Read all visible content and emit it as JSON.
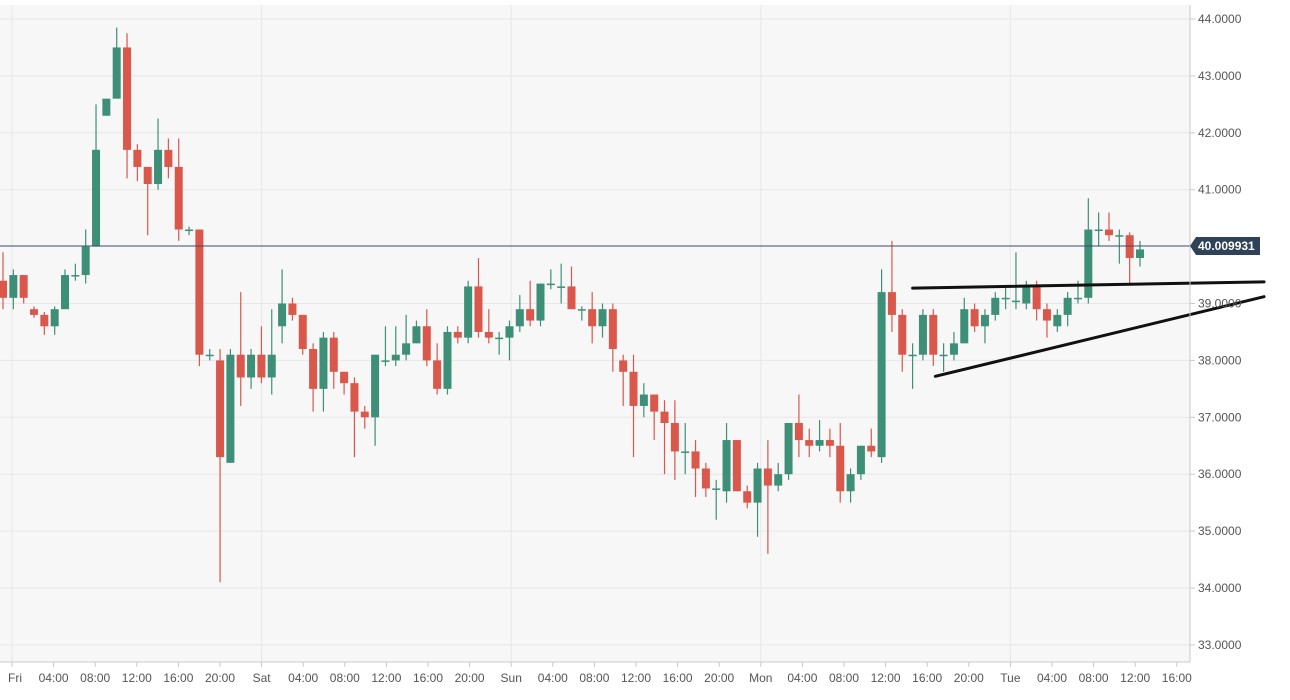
{
  "chart_data": {
    "type": "candlestick",
    "ylim": [
      32.7,
      44.2
    ],
    "y_ticks": [
      "44.0000",
      "43.0000",
      "42.0000",
      "41.0000",
      "39.0000",
      "38.0000",
      "37.0000",
      "36.0000",
      "35.0000",
      "34.0000",
      "33.0000"
    ],
    "y_tick_values": [
      44,
      43,
      42,
      41,
      39,
      38,
      37,
      36,
      35,
      34,
      33
    ],
    "x_ticks": [
      "Fri",
      "04:00",
      "08:00",
      "12:00",
      "16:00",
      "20:00",
      "Sat",
      "04:00",
      "08:00",
      "12:00",
      "16:00",
      "20:00",
      "Sun",
      "04:00",
      "08:00",
      "12:00",
      "16:00",
      "20:00",
      "Mon",
      "04:00",
      "08:00",
      "12:00",
      "16:00",
      "20:00",
      "Tue",
      "04:00",
      "08:00",
      "12:00",
      "16:00"
    ],
    "current_price": 40.009931,
    "current_price_label": "40.009931",
    "grid": true,
    "colors": {
      "up": "#3d8f77",
      "down": "#d9574b",
      "price_line": "#3b4a6b",
      "price_badge": "#2f4257",
      "grid": "#e7e7e7",
      "background": "#f7f7f7",
      "trendline": "#111111"
    },
    "trendlines": [
      {
        "name": "resistance",
        "points": [
          [
            8.8,
            39.27
          ],
          [
            12.2,
            39.38
          ]
        ]
      },
      {
        "name": "support",
        "points": [
          [
            9.02,
            37.72
          ],
          [
            12.2,
            39.12
          ]
        ]
      }
    ],
    "candles": [
      [
        0,
        39.4,
        39.1
      ],
      [
        0.1,
        39.1,
        39.5
      ],
      [
        0.2,
        39.5,
        39.1
      ],
      [
        0.3,
        38.9,
        38.8
      ],
      [
        0.4,
        38.8,
        38.6
      ],
      [
        0.5,
        38.6,
        38.9
      ],
      [
        0.6,
        38.9,
        39.5
      ],
      [
        0.7,
        39.5,
        39.5
      ],
      [
        0.8,
        39.5,
        40.0
      ],
      [
        0.9,
        40.0,
        41.7
      ],
      [
        1.0,
        42.3,
        42.6
      ],
      [
        1.1,
        42.6,
        43.5
      ],
      [
        1.2,
        43.5,
        41.7
      ],
      [
        1.3,
        41.7,
        41.4
      ],
      [
        1.4,
        41.4,
        41.1
      ],
      [
        1.5,
        41.1,
        41.7
      ],
      [
        1.6,
        41.7,
        41.4
      ],
      [
        1.7,
        41.4,
        40.3
      ],
      [
        1.8,
        40.3,
        40.3
      ],
      [
        1.9,
        40.3,
        38.1
      ],
      [
        2.0,
        38.1,
        38.1
      ],
      [
        2.1,
        38.0,
        36.3
      ],
      [
        2.2,
        36.2,
        38.1
      ],
      [
        2.3,
        38.1,
        37.7
      ],
      [
        2.4,
        37.7,
        38.1
      ],
      [
        2.5,
        38.1,
        37.7
      ],
      [
        2.6,
        37.7,
        38.1
      ],
      [
        2.7,
        38.6,
        39.0
      ],
      [
        2.8,
        39.0,
        38.8
      ],
      [
        2.9,
        38.8,
        38.2
      ],
      [
        3.0,
        38.2,
        37.5
      ],
      [
        3.1,
        37.5,
        38.4
      ],
      [
        3.2,
        38.4,
        37.8
      ],
      [
        3.3,
        37.8,
        37.6
      ],
      [
        3.4,
        37.6,
        37.1
      ],
      [
        3.5,
        37.1,
        37.0
      ],
      [
        3.6,
        37.0,
        38.1
      ],
      [
        3.7,
        38.0,
        38.0
      ],
      [
        3.8,
        38.0,
        38.1
      ],
      [
        3.9,
        38.1,
        38.3
      ],
      [
        4.0,
        38.3,
        38.6
      ],
      [
        4.1,
        38.6,
        38.0
      ],
      [
        4.2,
        38.0,
        37.5
      ],
      [
        4.3,
        37.5,
        38.5
      ],
      [
        4.4,
        38.5,
        38.4
      ],
      [
        4.5,
        38.4,
        39.3
      ],
      [
        4.6,
        39.3,
        38.5
      ],
      [
        4.7,
        38.5,
        38.4
      ],
      [
        4.8,
        38.4,
        38.4
      ],
      [
        4.9,
        38.4,
        38.6
      ],
      [
        5.0,
        38.6,
        38.9
      ],
      [
        5.1,
        38.9,
        38.7
      ],
      [
        5.2,
        38.7,
        39.35
      ],
      [
        5.3,
        39.35,
        39.35
      ],
      [
        5.4,
        39.3,
        39.3
      ],
      [
        5.5,
        39.3,
        38.9
      ],
      [
        5.6,
        38.9,
        38.9
      ],
      [
        5.7,
        38.9,
        38.6
      ],
      [
        5.8,
        38.6,
        38.9
      ],
      [
        5.9,
        38.9,
        38.2
      ],
      [
        6.0,
        38.0,
        37.8
      ],
      [
        6.1,
        37.8,
        37.2
      ],
      [
        6.2,
        37.2,
        37.4
      ],
      [
        6.3,
        37.4,
        37.1
      ],
      [
        6.4,
        37.1,
        36.9
      ],
      [
        6.5,
        36.9,
        36.4
      ],
      [
        6.6,
        36.4,
        36.4
      ],
      [
        6.7,
        36.4,
        36.1
      ],
      [
        6.8,
        36.1,
        35.75
      ],
      [
        6.9,
        35.75,
        35.75
      ],
      [
        7.0,
        35.7,
        36.6
      ],
      [
        7.1,
        36.6,
        35.7
      ],
      [
        7.2,
        35.7,
        35.5
      ],
      [
        7.3,
        35.5,
        36.1
      ],
      [
        7.4,
        36.1,
        35.8
      ],
      [
        7.5,
        35.8,
        36.0
      ],
      [
        7.6,
        36.0,
        36.9
      ],
      [
        7.7,
        36.9,
        36.6
      ],
      [
        7.8,
        36.6,
        36.5
      ],
      [
        7.9,
        36.5,
        36.6
      ],
      [
        8.0,
        36.6,
        36.5
      ],
      [
        8.1,
        36.5,
        35.7
      ],
      [
        8.2,
        35.7,
        36.0
      ],
      [
        8.3,
        36.0,
        36.5
      ],
      [
        8.4,
        36.5,
        36.4
      ],
      [
        8.5,
        36.3,
        39.2
      ],
      [
        8.6,
        39.2,
        38.8
      ],
      [
        8.7,
        38.8,
        38.1
      ],
      [
        8.8,
        38.1,
        38.1
      ],
      [
        8.9,
        38.1,
        38.8
      ],
      [
        9.0,
        38.8,
        38.1
      ],
      [
        9.1,
        38.1,
        38.1
      ],
      [
        9.2,
        38.1,
        38.3
      ],
      [
        9.3,
        38.3,
        38.9
      ],
      [
        9.4,
        38.9,
        38.6
      ],
      [
        9.5,
        38.6,
        38.8
      ],
      [
        9.6,
        38.8,
        39.1
      ],
      [
        9.7,
        39.1,
        39.1
      ],
      [
        9.8,
        39.05,
        39.05
      ],
      [
        9.9,
        39.0,
        39.3
      ],
      [
        10.0,
        39.3,
        38.9
      ],
      [
        10.1,
        38.9,
        38.7
      ],
      [
        10.2,
        38.6,
        38.8
      ],
      [
        10.3,
        38.8,
        39.1
      ],
      [
        10.4,
        39.1,
        39.1
      ],
      [
        10.5,
        39.1,
        40.3
      ],
      [
        10.6,
        40.3,
        40.3
      ],
      [
        10.7,
        40.3,
        40.2
      ],
      [
        10.8,
        40.2,
        40.2
      ],
      [
        10.9,
        40.2,
        39.8
      ],
      [
        11.0,
        39.8,
        39.95
      ]
    ],
    "wicks": [
      [
        0,
        39.9,
        38.9
      ],
      [
        0.1,
        39.6,
        38.9
      ],
      [
        0.2,
        39.5,
        39.0
      ],
      [
        0.3,
        38.95,
        38.75
      ],
      [
        0.4,
        38.85,
        38.45
      ],
      [
        0.5,
        38.95,
        38.45
      ],
      [
        0.6,
        39.6,
        38.95
      ],
      [
        0.7,
        39.7,
        39.4
      ],
      [
        0.8,
        40.3,
        39.35
      ],
      [
        0.9,
        42.5,
        40.0
      ],
      [
        1.0,
        42.6,
        42.3
      ],
      [
        1.1,
        43.85,
        42.6
      ],
      [
        1.2,
        43.75,
        41.2
      ],
      [
        1.3,
        41.8,
        41.15
      ],
      [
        1.4,
        41.4,
        40.2
      ],
      [
        1.5,
        42.25,
        41.0
      ],
      [
        1.6,
        41.9,
        41.2
      ],
      [
        1.7,
        41.9,
        40.1
      ],
      [
        1.8,
        40.35,
        40.2
      ],
      [
        1.9,
        40.3,
        37.9
      ],
      [
        2.0,
        38.2,
        38.0
      ],
      [
        2.1,
        38.2,
        34.1
      ],
      [
        2.2,
        38.2,
        36.2
      ],
      [
        2.3,
        39.2,
        37.2
      ],
      [
        2.4,
        38.2,
        37.5
      ],
      [
        2.5,
        38.6,
        37.6
      ],
      [
        2.6,
        38.9,
        37.4
      ],
      [
        2.7,
        39.6,
        38.3
      ],
      [
        2.8,
        39.1,
        38.7
      ],
      [
        2.9,
        38.8,
        38.1
      ],
      [
        3.0,
        38.3,
        37.1
      ],
      [
        3.1,
        38.5,
        37.1
      ],
      [
        3.2,
        38.5,
        37.5
      ],
      [
        3.3,
        37.8,
        37.4
      ],
      [
        3.4,
        37.7,
        36.3
      ],
      [
        3.5,
        37.2,
        36.8
      ],
      [
        3.6,
        38.1,
        36.5
      ],
      [
        3.7,
        38.6,
        37.9
      ],
      [
        3.8,
        38.6,
        37.9
      ],
      [
        3.9,
        38.8,
        38.0
      ],
      [
        4.0,
        38.7,
        38.3
      ],
      [
        4.1,
        38.9,
        37.9
      ],
      [
        4.2,
        38.3,
        37.4
      ],
      [
        4.3,
        38.6,
        37.4
      ],
      [
        4.4,
        38.6,
        38.3
      ],
      [
        4.5,
        39.4,
        38.3
      ],
      [
        4.6,
        39.8,
        38.4
      ],
      [
        4.7,
        38.9,
        38.3
      ],
      [
        4.8,
        38.5,
        38.1
      ],
      [
        4.9,
        38.7,
        38.0
      ],
      [
        5.0,
        39.15,
        38.5
      ],
      [
        5.1,
        39.4,
        38.6
      ],
      [
        5.2,
        39.35,
        38.6
      ],
      [
        5.3,
        39.6,
        39.25
      ],
      [
        5.4,
        39.7,
        39.0
      ],
      [
        5.5,
        39.65,
        38.9
      ],
      [
        5.6,
        38.95,
        38.7
      ],
      [
        5.7,
        39.2,
        38.3
      ],
      [
        5.8,
        39.0,
        38.4
      ],
      [
        5.9,
        39.0,
        37.8
      ],
      [
        6.0,
        38.1,
        37.2
      ],
      [
        6.1,
        38.1,
        36.3
      ],
      [
        6.2,
        37.6,
        37.0
      ],
      [
        6.3,
        37.4,
        36.6
      ],
      [
        6.4,
        37.3,
        36.0
      ],
      [
        6.5,
        37.3,
        35.9
      ],
      [
        6.6,
        36.9,
        36.0
      ],
      [
        6.7,
        36.6,
        35.6
      ],
      [
        6.8,
        36.2,
        35.6
      ],
      [
        6.9,
        35.9,
        35.2
      ],
      [
        7.0,
        36.9,
        35.5
      ],
      [
        7.1,
        36.6,
        35.7
      ],
      [
        7.2,
        35.8,
        35.4
      ],
      [
        7.3,
        36.2,
        34.9
      ],
      [
        7.4,
        36.6,
        34.6
      ],
      [
        7.5,
        36.2,
        35.7
      ],
      [
        7.6,
        36.9,
        35.9
      ],
      [
        7.7,
        37.4,
        36.3
      ],
      [
        7.8,
        36.8,
        36.3
      ],
      [
        7.9,
        36.95,
        36.4
      ],
      [
        8.0,
        36.8,
        36.3
      ],
      [
        8.1,
        36.9,
        35.5
      ],
      [
        8.2,
        36.1,
        35.5
      ],
      [
        8.3,
        36.5,
        35.9
      ],
      [
        8.4,
        36.8,
        36.3
      ],
      [
        8.5,
        39.6,
        36.2
      ],
      [
        8.6,
        40.1,
        38.5
      ],
      [
        8.7,
        38.9,
        37.8
      ],
      [
        8.8,
        38.3,
        37.5
      ],
      [
        8.9,
        38.9,
        38.0
      ],
      [
        9.0,
        38.9,
        37.9
      ],
      [
        9.1,
        38.3,
        37.8
      ],
      [
        9.2,
        38.5,
        38.0
      ],
      [
        9.3,
        39.1,
        38.3
      ],
      [
        9.4,
        39.0,
        38.5
      ],
      [
        9.5,
        38.9,
        38.3
      ],
      [
        9.6,
        39.2,
        38.7
      ],
      [
        9.7,
        39.3,
        38.9
      ],
      [
        9.8,
        39.9,
        38.9
      ],
      [
        9.9,
        39.4,
        38.9
      ],
      [
        10.0,
        39.4,
        38.7
      ],
      [
        10.1,
        39.0,
        38.4
      ],
      [
        10.2,
        38.9,
        38.5
      ],
      [
        10.3,
        39.2,
        38.6
      ],
      [
        10.4,
        39.4,
        39.0
      ],
      [
        10.5,
        40.85,
        39.0
      ],
      [
        10.6,
        40.6,
        40.0
      ],
      [
        10.7,
        40.6,
        40.1
      ],
      [
        10.8,
        40.3,
        39.7
      ],
      [
        10.9,
        40.25,
        39.35
      ],
      [
        11.0,
        40.1,
        39.65
      ]
    ]
  }
}
